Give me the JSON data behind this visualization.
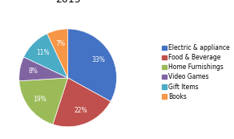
{
  "labels": [
    "Electric & appliance",
    "Food & Beverage",
    "Home Furnishings",
    "Video Games",
    "Gift Items",
    "Books"
  ],
  "values": [
    33,
    22,
    19,
    8,
    11,
    7
  ],
  "colors": [
    "#4472C4",
    "#C0504D",
    "#9BBB59",
    "#8064A2",
    "#4BACC6",
    "#F79646"
  ],
  "startangle": 90,
  "background_color": "#FFFFFF",
  "title_fontsize": 9,
  "legend_fontsize": 5.5,
  "autopct_fontsize": 5.5,
  "pct_color": "white"
}
